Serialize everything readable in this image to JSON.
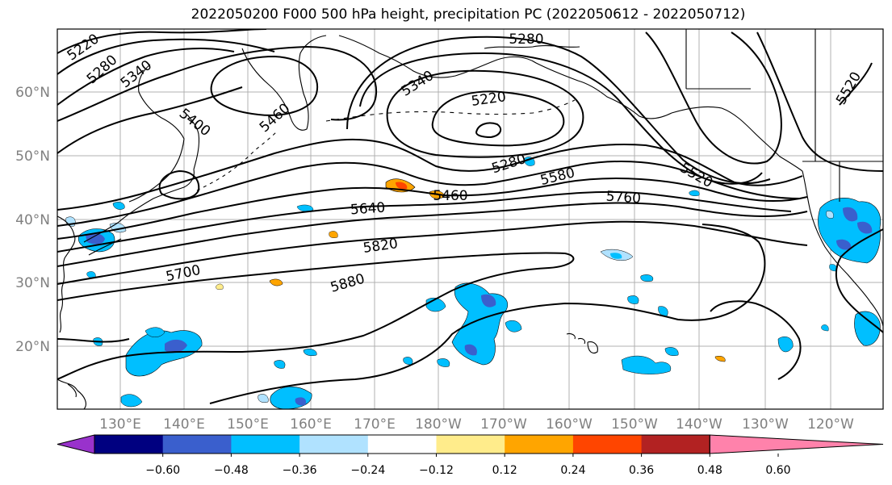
{
  "title": "2022050200 F000 500 hPa height, precipitation PC (2022050612 - 2022050712)",
  "map": {
    "lat_labels": [
      "60°N",
      "50°N",
      "40°N",
      "30°N",
      "20°N"
    ],
    "lon_labels": [
      "130°E",
      "140°E",
      "150°E",
      "160°E",
      "170°E",
      "180°W",
      "170°W",
      "160°W",
      "150°W",
      "140°W",
      "130°W",
      "120°W"
    ],
    "contour_labels": [
      "5220",
      "5280",
      "5340",
      "5400",
      "5460",
      "5340",
      "5220",
      "5280",
      "5280",
      "5580",
      "5460",
      "5520",
      "5760",
      "5640",
      "5820",
      "5700",
      "5880",
      "5520"
    ],
    "grid": "on"
  },
  "colorbar": {
    "tick_labels": [
      "−0.60",
      "−0.48",
      "−0.36",
      "−0.24",
      "−0.12",
      "0.12",
      "0.24",
      "0.36",
      "0.48",
      "0.60"
    ],
    "colors": [
      "#9932cc",
      "#000080",
      "#3a5fcd",
      "#00bfff",
      "#b0e2ff",
      "#ffffff",
      "#ffec8b",
      "#ffa500",
      "#ff4500",
      "#b22222",
      "#ff82ab"
    ]
  }
}
